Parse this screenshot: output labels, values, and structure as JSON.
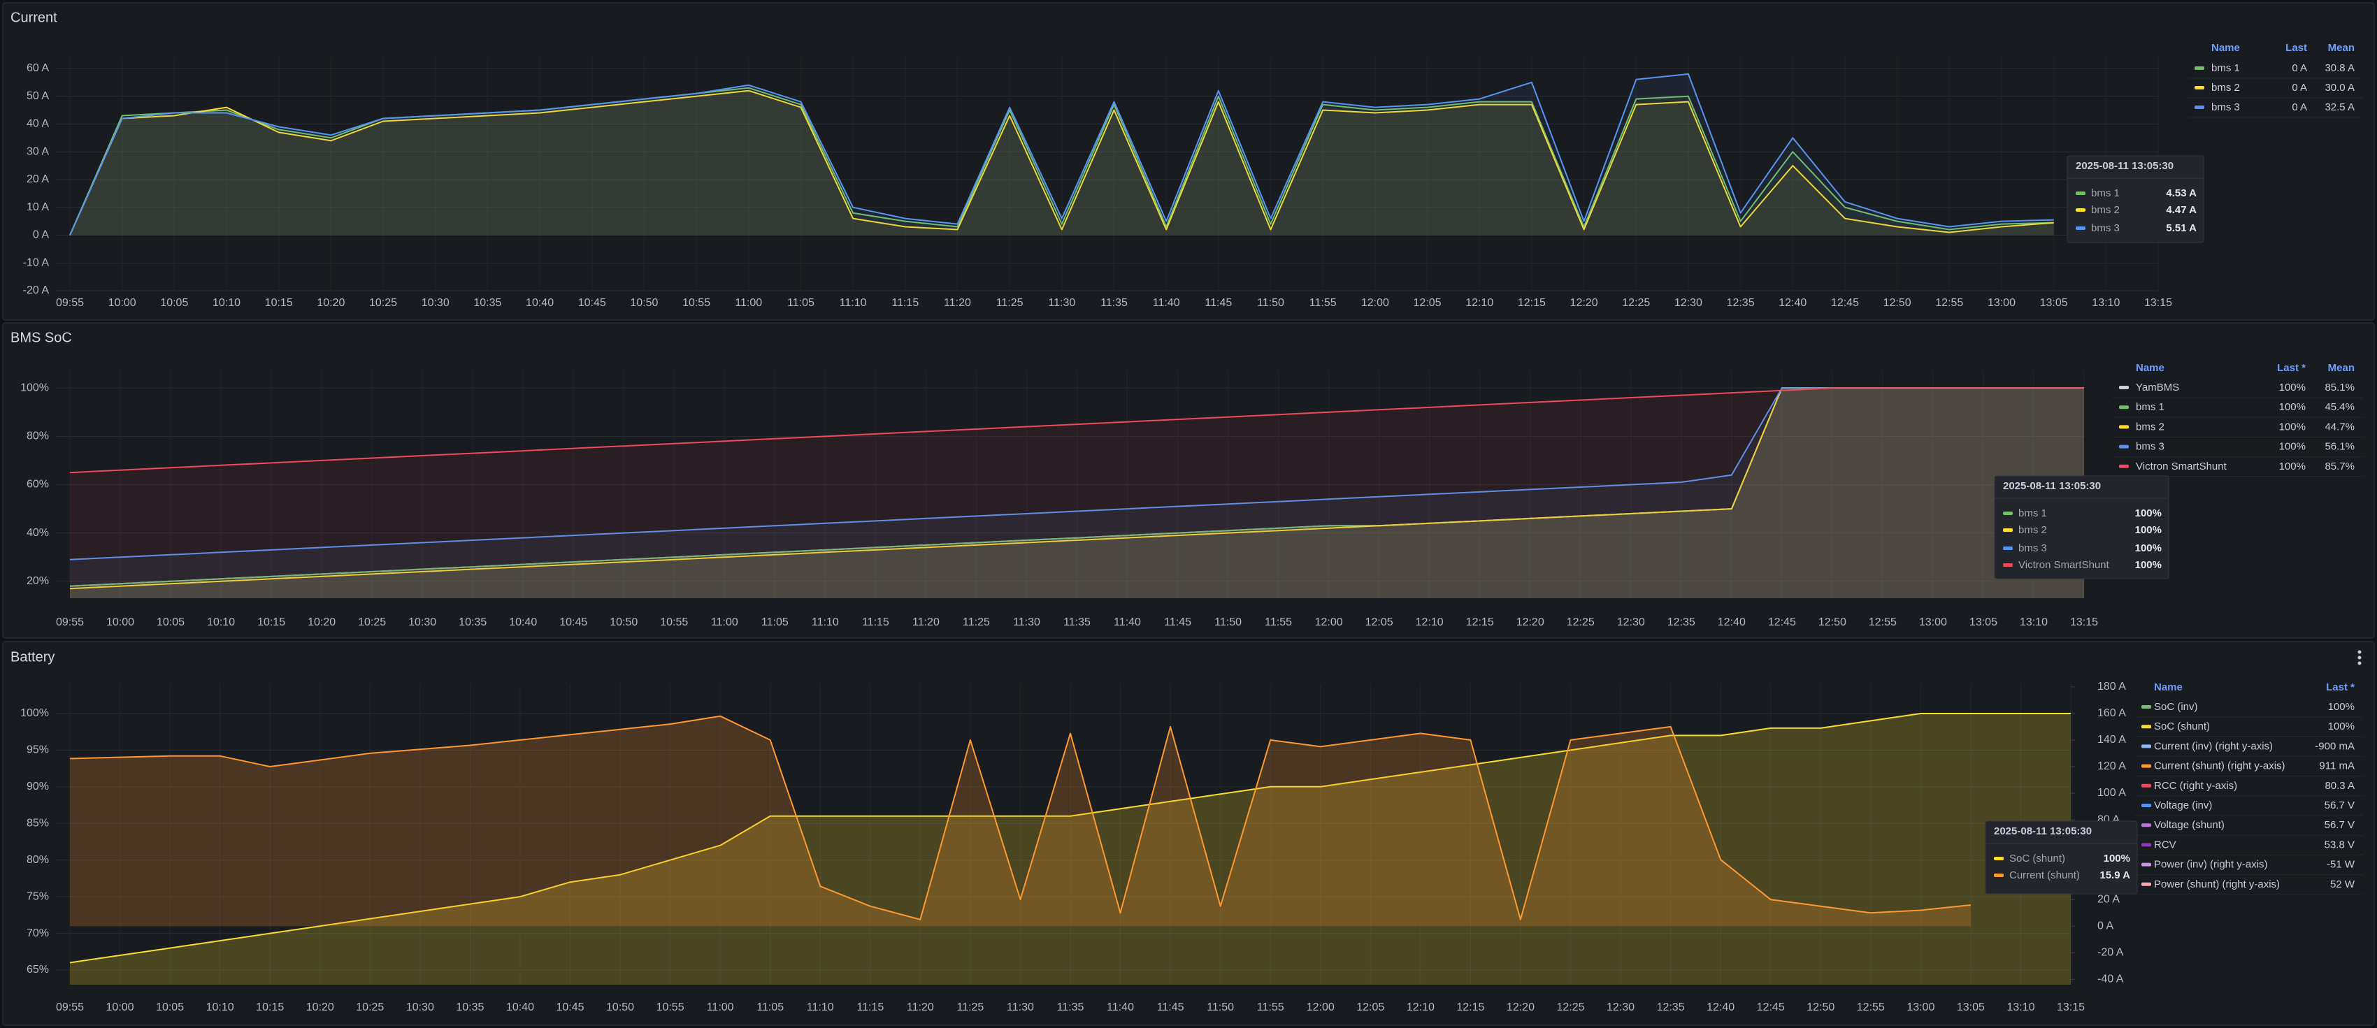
{
  "chart_data": [
    {
      "type": "line",
      "title": "Current",
      "categories": [
        "09:55",
        "10:00",
        "10:05",
        "10:10",
        "10:15",
        "10:20",
        "10:25",
        "10:30",
        "10:35",
        "10:40",
        "10:45",
        "10:50",
        "10:55",
        "11:00",
        "11:05",
        "11:10",
        "11:15",
        "11:20",
        "11:25",
        "11:30",
        "11:35",
        "11:40",
        "11:45",
        "11:50",
        "11:55",
        "12:00",
        "12:05",
        "12:10",
        "12:15",
        "12:20",
        "12:25",
        "12:30",
        "12:35",
        "12:40",
        "12:45",
        "12:50",
        "12:55",
        "13:00",
        "13:05",
        "13:10",
        "13:15"
      ],
      "ylim": [
        -20,
        64
      ],
      "yticks": [
        {
          "value": -20,
          "label": "-20 A"
        },
        {
          "value": -10,
          "label": "-10 A"
        },
        {
          "value": 0,
          "label": "0 A"
        },
        {
          "value": 10,
          "label": "10 A"
        },
        {
          "value": 20,
          "label": "20 A"
        },
        {
          "value": 30,
          "label": "30 A"
        },
        {
          "value": 40,
          "label": "40 A"
        },
        {
          "value": 50,
          "label": "50 A"
        },
        {
          "value": 60,
          "label": "60 A"
        }
      ],
      "grid": true,
      "legend_columns": [
        "Name",
        "Last",
        "Mean"
      ],
      "series": [
        {
          "name": "bms 1",
          "color": "#73bf69",
          "last": "0 A",
          "mean": "30.8 A",
          "values": [
            0,
            43,
            44,
            45,
            38,
            35,
            42,
            43,
            44,
            45,
            47,
            49,
            51,
            53,
            47,
            8,
            5,
            3,
            45,
            4,
            47,
            3,
            50,
            4,
            47,
            45,
            46,
            48,
            48,
            3,
            49,
            50,
            5,
            30,
            10,
            5,
            2,
            4,
            4.53,
            null,
            null
          ]
        },
        {
          "name": "bms 2",
          "color": "#fade2a",
          "last": "0 A",
          "mean": "30.0 A",
          "values": [
            0,
            42,
            43,
            46,
            37,
            34,
            41,
            42,
            43,
            44,
            46,
            48,
            50,
            52,
            46,
            6,
            3,
            2,
            43,
            2,
            45,
            2,
            48,
            2,
            45,
            44,
            45,
            47,
            47,
            2,
            47,
            48,
            3,
            25,
            6,
            3,
            1,
            3,
            4.47,
            null,
            null
          ]
        },
        {
          "name": "bms 3",
          "color": "#5794f2",
          "last": "0 A",
          "mean": "32.5 A",
          "values": [
            0,
            42,
            44,
            44,
            39,
            36,
            42,
            43,
            44,
            45,
            47,
            49,
            51,
            54,
            48,
            10,
            6,
            4,
            46,
            6,
            48,
            5,
            52,
            6,
            48,
            46,
            47,
            49,
            55,
            5,
            56,
            58,
            8,
            35,
            12,
            6,
            3,
            5,
            5.51,
            null,
            null
          ]
        }
      ],
      "tooltip": {
        "time": "2025-08-11 13:05:30",
        "rows": [
          {
            "name": "bms 1",
            "color": "#73bf69",
            "value": "4.53 A"
          },
          {
            "name": "bms 2",
            "color": "#fade2a",
            "value": "4.47 A"
          },
          {
            "name": "bms 3",
            "color": "#5794f2",
            "value": "5.51 A"
          }
        ]
      }
    },
    {
      "type": "line",
      "title": "BMS SoC",
      "categories": [
        "09:55",
        "10:00",
        "10:05",
        "10:10",
        "10:15",
        "10:20",
        "10:25",
        "10:30",
        "10:35",
        "10:40",
        "10:45",
        "10:50",
        "10:55",
        "11:00",
        "11:05",
        "11:10",
        "11:15",
        "11:20",
        "11:25",
        "11:30",
        "11:35",
        "11:40",
        "11:45",
        "11:50",
        "11:55",
        "12:00",
        "12:05",
        "12:10",
        "12:15",
        "12:20",
        "12:25",
        "12:30",
        "12:35",
        "12:40",
        "12:45",
        "12:50",
        "12:55",
        "13:00",
        "13:05",
        "13:10",
        "13:15"
      ],
      "ylim": [
        13,
        107
      ],
      "yticks": [
        {
          "value": 20,
          "label": "20%"
        },
        {
          "value": 40,
          "label": "40%"
        },
        {
          "value": 60,
          "label": "60%"
        },
        {
          "value": 80,
          "label": "80%"
        },
        {
          "value": 100,
          "label": "100%"
        }
      ],
      "grid": true,
      "legend_columns": [
        "Name",
        "Last *",
        "Mean"
      ],
      "series": [
        {
          "name": "YamBMS",
          "color": "#ccccdc",
          "last": "100%",
          "mean": "85.1%",
          "values": [
            18,
            19,
            20,
            21,
            22,
            23,
            24,
            25,
            26,
            27,
            28,
            29,
            30,
            31,
            32,
            33,
            34,
            35,
            36,
            37,
            38,
            39,
            40,
            41,
            42,
            43,
            43,
            44,
            45,
            46,
            47,
            48,
            49,
            50,
            100,
            100,
            100,
            100,
            100,
            100,
            100
          ]
        },
        {
          "name": "bms 1",
          "color": "#73bf69",
          "last": "100%",
          "mean": "45.4%",
          "values": [
            18,
            19,
            20,
            21,
            22,
            23,
            24,
            25,
            26,
            27,
            28,
            29,
            30,
            31,
            32,
            33,
            34,
            35,
            36,
            37,
            38,
            39,
            40,
            41,
            42,
            43,
            43,
            44,
            45,
            46,
            47,
            48,
            49,
            50,
            100,
            100,
            100,
            100,
            100,
            100,
            100
          ]
        },
        {
          "name": "bms 2",
          "color": "#fade2a",
          "last": "100%",
          "mean": "44.7%",
          "values": [
            17,
            18,
            19,
            20,
            21,
            22,
            23,
            24,
            25,
            26,
            27,
            28,
            29,
            30,
            31,
            32,
            33,
            34,
            35,
            36,
            37,
            38,
            39,
            40,
            41,
            42,
            43,
            44,
            45,
            46,
            47,
            48,
            49,
            50,
            100,
            100,
            100,
            100,
            100,
            100,
            100
          ]
        },
        {
          "name": "bms 3",
          "color": "#5794f2",
          "last": "100%",
          "mean": "56.1%",
          "values": [
            29,
            30,
            31,
            32,
            33,
            34,
            35,
            36,
            37,
            38,
            39,
            40,
            41,
            42,
            43,
            44,
            45,
            46,
            47,
            48,
            49,
            50,
            51,
            52,
            53,
            54,
            55,
            56,
            57,
            58,
            59,
            60,
            61,
            64,
            100,
            100,
            100,
            100,
            100,
            100,
            100
          ]
        },
        {
          "name": "Victron SmartShunt",
          "color": "#f2495c",
          "last": "100%",
          "mean": "85.7%",
          "values": [
            65,
            66,
            67,
            68,
            69,
            70,
            71,
            72,
            73,
            74,
            75,
            76,
            77,
            78,
            79,
            80,
            81,
            82,
            83,
            84,
            85,
            86,
            87,
            88,
            89,
            90,
            91,
            92,
            93,
            94,
            95,
            96,
            97,
            98,
            99,
            100,
            100,
            100,
            100,
            100,
            100
          ]
        }
      ],
      "tooltip": {
        "time": "2025-08-11 13:05:30",
        "rows": [
          {
            "name": "bms 1",
            "color": "#73bf69",
            "value": "100%"
          },
          {
            "name": "bms 2",
            "color": "#fade2a",
            "value": "100%"
          },
          {
            "name": "bms 3",
            "color": "#5794f2",
            "value": "100%"
          },
          {
            "name": "Victron SmartShunt",
            "color": "#f2495c",
            "value": "100%"
          }
        ]
      }
    },
    {
      "type": "line",
      "title": "Battery",
      "categories": [
        "09:55",
        "10:00",
        "10:05",
        "10:10",
        "10:15",
        "10:20",
        "10:25",
        "10:30",
        "10:35",
        "10:40",
        "10:45",
        "10:50",
        "10:55",
        "11:00",
        "11:05",
        "11:10",
        "11:15",
        "11:20",
        "11:25",
        "11:30",
        "11:35",
        "11:40",
        "11:45",
        "11:50",
        "11:55",
        "12:00",
        "12:05",
        "12:10",
        "12:15",
        "12:20",
        "12:25",
        "12:30",
        "12:35",
        "12:40",
        "12:45",
        "12:50",
        "12:55",
        "13:00",
        "13:05",
        "13:10",
        "13:15"
      ],
      "ylim": [
        63,
        104
      ],
      "yticks": [
        {
          "value": 65,
          "label": "65%"
        },
        {
          "value": 70,
          "label": "70%"
        },
        {
          "value": 75,
          "label": "75%"
        },
        {
          "value": 80,
          "label": "80%"
        },
        {
          "value": 85,
          "label": "85%"
        },
        {
          "value": 90,
          "label": "90%"
        },
        {
          "value": 95,
          "label": "95%"
        },
        {
          "value": 100,
          "label": "100%"
        }
      ],
      "y2lim": [
        -44,
        182
      ],
      "y2ticks": [
        {
          "value": -40,
          "label": "-40 A"
        },
        {
          "value": -20,
          "label": "-20 A"
        },
        {
          "value": 0,
          "label": "0 A"
        },
        {
          "value": 20,
          "label": "20 A"
        },
        {
          "value": 40,
          "label": "40 A"
        },
        {
          "value": 60,
          "label": "60 A"
        },
        {
          "value": 80,
          "label": "80 A"
        },
        {
          "value": 100,
          "label": "100 A"
        },
        {
          "value": 120,
          "label": "120 A"
        },
        {
          "value": 140,
          "label": "140 A"
        },
        {
          "value": 160,
          "label": "160 A"
        },
        {
          "value": 180,
          "label": "180 A"
        }
      ],
      "grid": true,
      "legend_columns": [
        "Name",
        "Last *"
      ],
      "series": [
        {
          "name": "SoC (inv)",
          "color": "#73bf69",
          "last": "100%"
        },
        {
          "name": "SoC (shunt)",
          "color": "#fade2a",
          "last": "100%",
          "values": [
            66,
            67,
            68,
            69,
            70,
            71,
            72,
            73,
            74,
            75,
            77,
            78,
            80,
            82,
            86,
            86,
            86,
            86,
            86,
            86,
            86,
            87,
            88,
            89,
            90,
            90,
            91,
            92,
            93,
            94,
            95,
            96,
            97,
            97,
            98,
            98,
            99,
            100,
            100,
            100,
            100
          ]
        },
        {
          "name": "Current (inv) (right y-axis)",
          "color": "#8ab8ff",
          "last": "-900 mA"
        },
        {
          "name": "Current (shunt) (right y-axis)",
          "color": "#ff9830",
          "last": "911 mA",
          "axis": "y2",
          "values": [
            126,
            127,
            128,
            128,
            120,
            125,
            130,
            133,
            136,
            140,
            144,
            148,
            152,
            158,
            140,
            30,
            15,
            5,
            140,
            20,
            145,
            10,
            150,
            15,
            140,
            135,
            140,
            145,
            140,
            5,
            140,
            145,
            150,
            50,
            20,
            15,
            10,
            12,
            15.9,
            null,
            null
          ]
        },
        {
          "name": "RCC (right y-axis)",
          "color": "#f2495c",
          "last": "80.3 A"
        },
        {
          "name": "Voltage (inv)",
          "color": "#5794f2",
          "last": "56.7 V"
        },
        {
          "name": "Voltage (shunt)",
          "color": "#b877d9",
          "last": "56.7 V"
        },
        {
          "name": "RCV",
          "color": "#8f3bb8",
          "last": "53.8 V"
        },
        {
          "name": "Power (inv) (right y-axis)",
          "color": "#ca95e5",
          "last": "-51 W"
        },
        {
          "name": "Power (shunt) (right y-axis)",
          "color": "#ffa6b0",
          "last": "52 W"
        }
      ],
      "tooltip": {
        "time": "2025-08-11 13:05:30",
        "rows": [
          {
            "name": "SoC (shunt)",
            "color": "#fade2a",
            "value": "100%"
          },
          {
            "name": "Current (shunt)",
            "color": "#ff9830",
            "value": "15.9 A"
          }
        ]
      }
    }
  ]
}
